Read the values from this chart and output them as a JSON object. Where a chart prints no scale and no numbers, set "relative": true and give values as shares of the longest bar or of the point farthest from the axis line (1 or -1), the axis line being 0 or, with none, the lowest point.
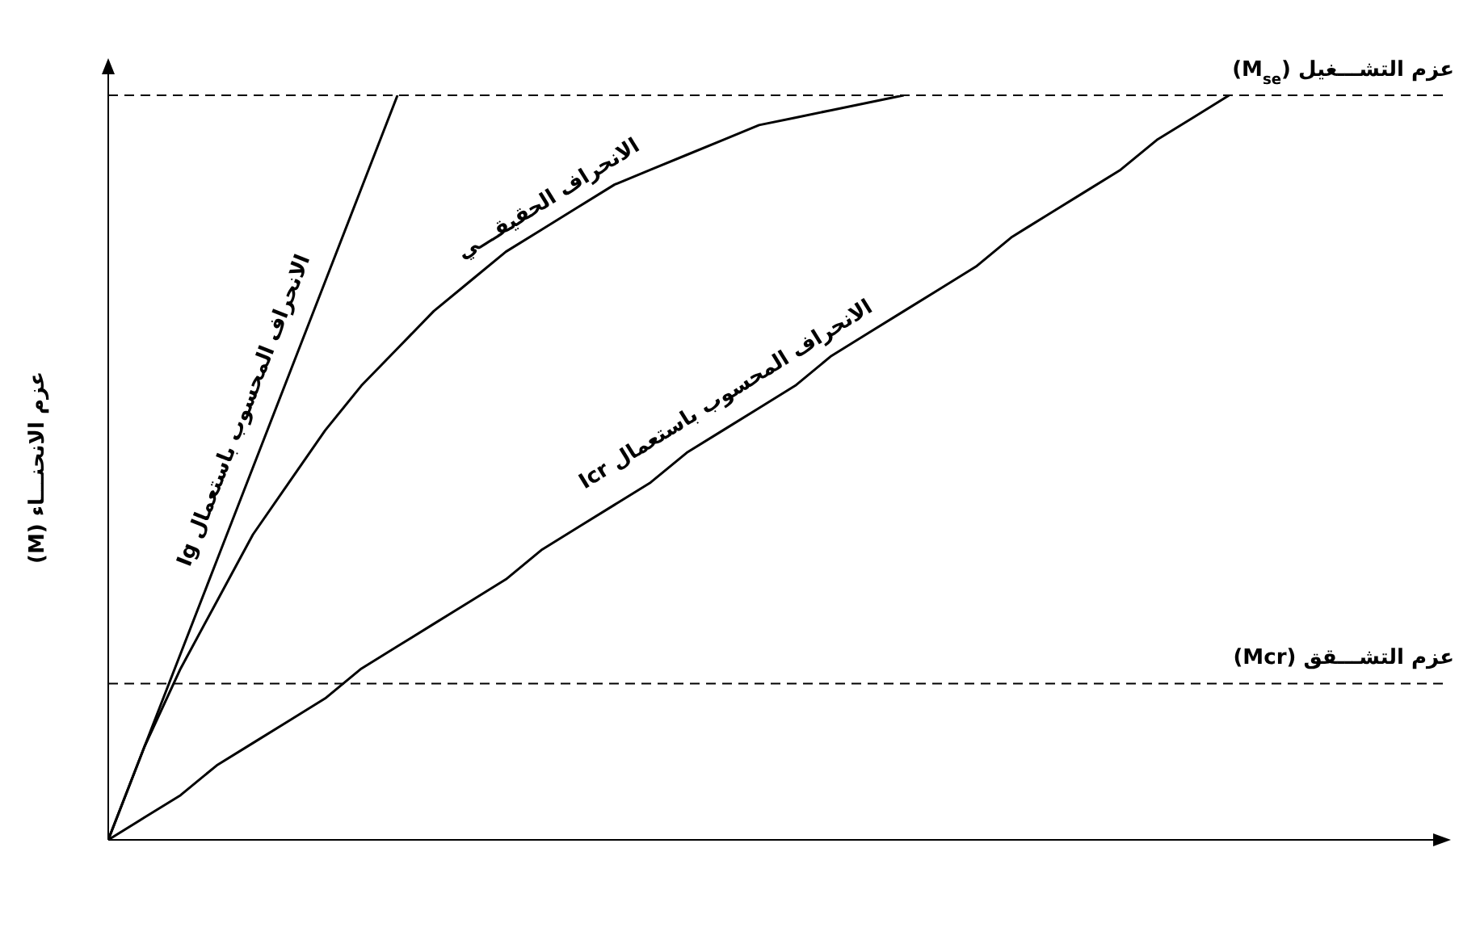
{
  "chart_data": {
    "type": "line",
    "ylabel": "عزم الانحنـــاء (M)",
    "relative": true,
    "marker": "none",
    "line_style": "solid",
    "categories": [
      null,
      null,
      null,
      null,
      null,
      null,
      null,
      null,
      null,
      null,
      null,
      null,
      null,
      null,
      null,
      null,
      null,
      null,
      null,
      null,
      null,
      null,
      null,
      null,
      null,
      null,
      null,
      null,
      null,
      null,
      null,
      null,
      null,
      null,
      null,
      null,
      null,
      null
    ],
    "series": [
      {
        "name": "الانحراف المحسوب باستعمال Ig",
        "color": "#000000",
        "values": [
          0,
          0.125,
          0.25,
          0.375,
          0.5,
          0.625,
          0.75,
          0.875,
          1,
          null,
          null,
          null,
          null,
          null,
          null,
          null,
          null,
          null,
          null,
          null,
          null,
          null,
          null,
          null,
          null,
          null,
          null,
          null,
          null,
          null,
          null,
          null,
          null,
          null,
          null,
          null,
          null,
          null
        ]
      },
      {
        "name": "الانحراف الحقيقـــي",
        "color": "#000000",
        "values": [
          0,
          0.125,
          0.23,
          0.32,
          0.41,
          0.48,
          0.55,
          0.61,
          0.66,
          0.71,
          0.75,
          0.79,
          0.82,
          0.85,
          0.88,
          0.9,
          0.92,
          0.94,
          0.96,
          0.97,
          0.98,
          0.99,
          1,
          null,
          null,
          null,
          null,
          null,
          null,
          null,
          null,
          null,
          null,
          null,
          null,
          null,
          null,
          null
        ]
      },
      {
        "name": "الانحراف المحسوب باستعمال Icr",
        "color": "#000000",
        "values": [
          0,
          0.03,
          0.06,
          0.1,
          0.13,
          0.16,
          0.19,
          0.23,
          0.26,
          0.29,
          0.32,
          0.35,
          0.39,
          0.42,
          0.45,
          0.48,
          0.52,
          0.55,
          0.58,
          0.61,
          0.65,
          0.68,
          0.71,
          0.74,
          0.77,
          0.81,
          0.84,
          0.87,
          0.9,
          0.94,
          0.97,
          1,
          null,
          null,
          null,
          null,
          null,
          null
        ]
      }
    ],
    "ref_lines": [
      {
        "axis": "y",
        "value": 1,
        "label": "عزم التشـــغيل (M$_{se}$)",
        "color": "#000000",
        "line_style": "dashed"
      },
      {
        "axis": "y",
        "value": 0.21,
        "label": "عزم التشـــقق (Mcr)",
        "color": "#000000",
        "line_style": "dashed"
      }
    ]
  }
}
